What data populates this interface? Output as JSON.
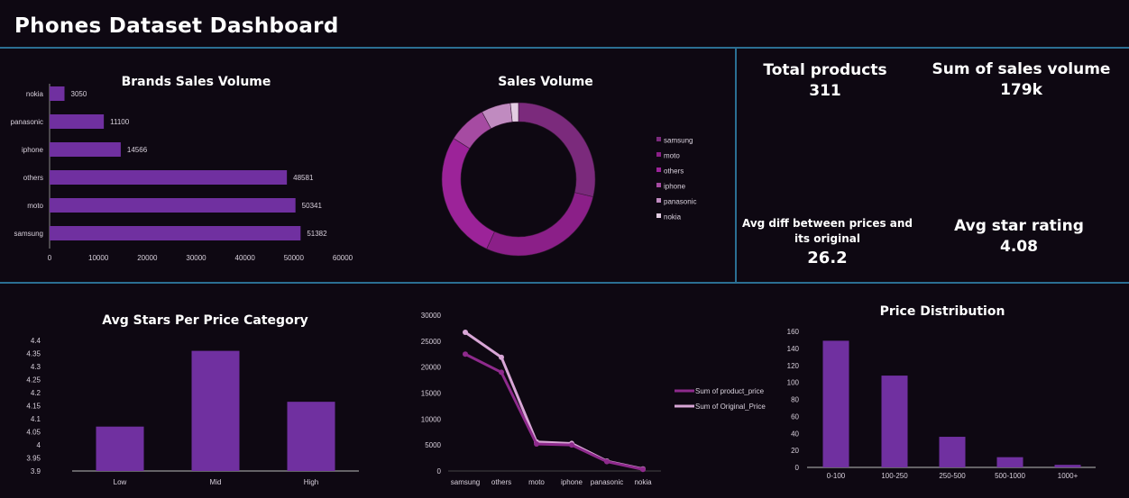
{
  "header": {
    "title": "Phones Dataset Dashboard"
  },
  "kpis": {
    "total_products_label": "Total products",
    "total_products_value": "311",
    "sum_sales_label": "Sum of sales volume",
    "sum_sales_value": "179k",
    "avg_diff_label_line1": "Avg diff between prices and",
    "avg_diff_label_line2": "its original",
    "avg_diff_value": "26.2",
    "avg_star_label": "Avg star rating",
    "avg_star_value": "4.08"
  },
  "colors": {
    "bar": "#7030a0",
    "background": "#0e0812",
    "divider": "#2b6f93"
  },
  "chart_data": [
    {
      "type": "bar",
      "orientation": "horizontal",
      "title": "Brands Sales Volume",
      "categories": [
        "nokia",
        "panasonic",
        "iphone",
        "others",
        "moto",
        "samsung"
      ],
      "values": [
        3050,
        11100,
        14566,
        48581,
        50341,
        51382
      ],
      "xlim": [
        0,
        60000
      ],
      "xticks": [
        "0",
        "10000",
        "20000",
        "30000",
        "40000",
        "50000",
        "60000"
      ],
      "data_labels": true
    },
    {
      "type": "pie",
      "subtype": "donut",
      "title": "Sales Volume",
      "categories": [
        "samsung",
        "moto",
        "others",
        "iphone",
        "panasonic",
        "nokia"
      ],
      "values": [
        51382,
        50341,
        48581,
        14566,
        11100,
        3050
      ],
      "colors": [
        "#7b2a7c",
        "#8b1f88",
        "#9c2399",
        "#a64ba2",
        "#c08bc0",
        "#e3cde3"
      ],
      "legend": "right"
    },
    {
      "type": "bar",
      "title": "Avg Stars Per Price Category",
      "categories": [
        "Low",
        "Mid",
        "High"
      ],
      "values": [
        4.07,
        4.36,
        4.165
      ],
      "ylim": [
        3.9,
        4.4
      ],
      "yticks": [
        "3.9",
        "3.95",
        "4",
        "4.05",
        "4.1",
        "4.15",
        "4.2",
        "4.25",
        "4.3",
        "4.35",
        "4.4"
      ]
    },
    {
      "type": "line",
      "title": "",
      "categories": [
        "samsung",
        "others",
        "moto",
        "iphone",
        "panasonic",
        "nokia"
      ],
      "series": [
        {
          "name": "Sum of product_price",
          "values": [
            22500,
            19000,
            5200,
            5000,
            1800,
            300
          ],
          "color": "#8e2a8c"
        },
        {
          "name": "Sum of Original_Price",
          "values": [
            26700,
            21900,
            5600,
            5300,
            1900,
            400
          ],
          "color": "#d8a6d6"
        }
      ],
      "ylim": [
        0,
        30000
      ],
      "yticks": [
        "0",
        "5000",
        "10000",
        "15000",
        "20000",
        "25000",
        "30000"
      ],
      "legend": "right"
    },
    {
      "type": "bar",
      "title": "Price Distribution",
      "categories": [
        "0-100",
        "100-250",
        "250-500",
        "500-1000",
        "1000+"
      ],
      "values": [
        149,
        108,
        36,
        12,
        3
      ],
      "ylim": [
        0,
        160
      ],
      "yticks": [
        "0",
        "20",
        "40",
        "60",
        "80",
        "100",
        "120",
        "140",
        "160"
      ]
    }
  ]
}
